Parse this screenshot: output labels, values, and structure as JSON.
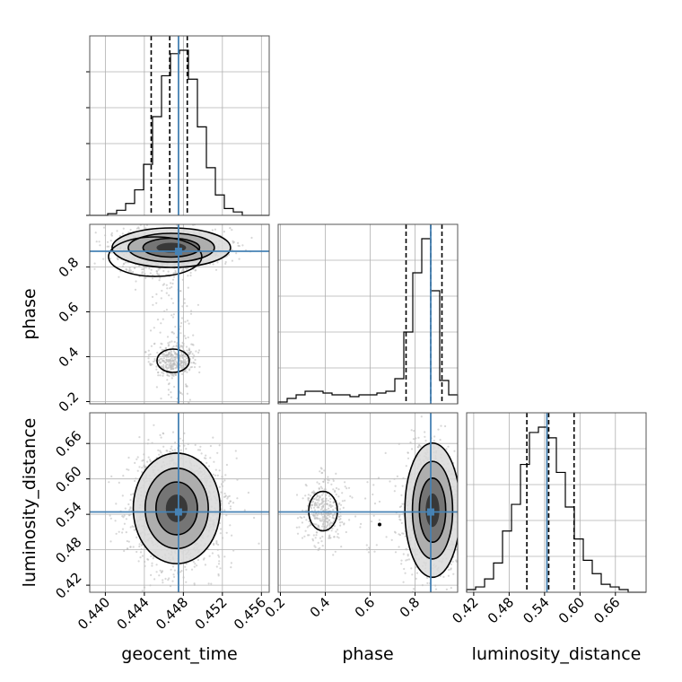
{
  "chart_data": {
    "type": "corner",
    "title": "",
    "parameters": [
      {
        "name": "geocent_time",
        "label": "geocent_time",
        "range": [
          0.4384,
          0.4568
        ],
        "ticks": [
          0.44,
          0.444,
          0.448,
          0.452,
          0.456
        ],
        "tick_labels": [
          "0.440",
          "0.444",
          "0.448",
          "0.452",
          "0.456"
        ],
        "truth": 0.4475,
        "quantiles": [
          0.4447,
          0.4466,
          0.4484
        ],
        "histogram": [
          0,
          0,
          1,
          3,
          7,
          15,
          30,
          58,
          82,
          95,
          97,
          80,
          52,
          28,
          12,
          4,
          2,
          0,
          0,
          0
        ]
      },
      {
        "name": "phase",
        "label": "phase",
        "range": [
          0.19,
          0.99
        ],
        "ticks": [
          0.2,
          0.4,
          0.6,
          0.8
        ],
        "tick_labels": [
          "0.2",
          "0.4",
          "0.6",
          "0.8"
        ],
        "truth": 0.87,
        "quantiles": [
          0.76,
          0.87,
          0.92
        ],
        "histogram": [
          1,
          3,
          5,
          7,
          7,
          6,
          5,
          5,
          4,
          5,
          5,
          6,
          7,
          14,
          40,
          73,
          92,
          63,
          13,
          5
        ]
      },
      {
        "name": "luminosity_distance",
        "label": "luminosity_distance",
        "range": [
          0.408,
          0.712
        ],
        "ticks": [
          0.42,
          0.48,
          0.54,
          0.6,
          0.66
        ],
        "tick_labels": [
          "0.42",
          "0.48",
          "0.54",
          "0.60",
          "0.66"
        ],
        "truth": 0.544,
        "quantiles": [
          0.51,
          0.547,
          0.59
        ],
        "histogram": [
          1,
          2,
          5,
          11,
          23,
          33,
          48,
          60,
          62,
          58,
          45,
          32,
          20,
          12,
          7,
          3,
          2,
          1,
          0,
          0
        ]
      }
    ],
    "grid": true,
    "truth_color": "#4682b4",
    "contour_color": "#000000",
    "density_color": "#000000",
    "hist_color": "#000000",
    "sample_color": "#bdbdbd"
  }
}
